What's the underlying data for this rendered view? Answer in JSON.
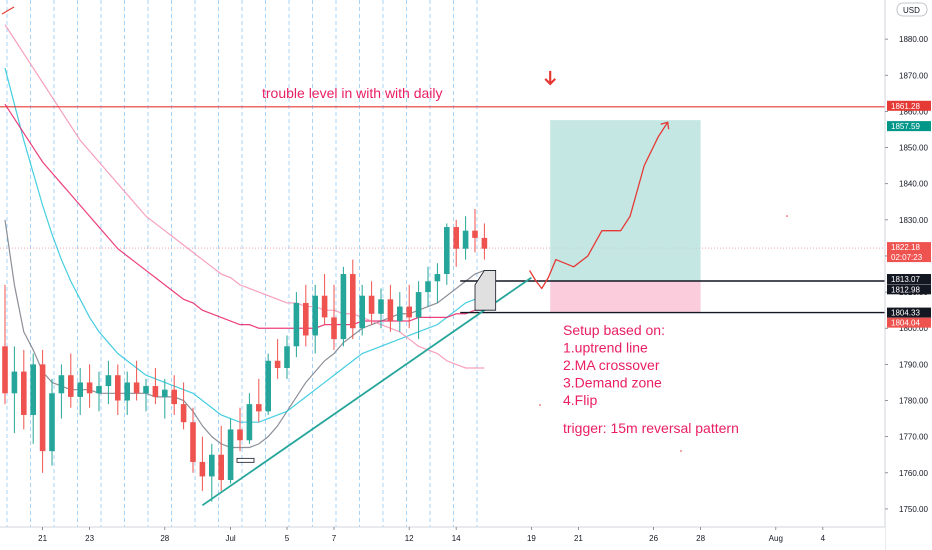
{
  "currency": "USD",
  "chart_data": {
    "type": "candlestick",
    "title": "",
    "xlabel": "",
    "ylabel": "",
    "ylim": [
      1745,
      1890
    ],
    "x_ticks": [
      "21",
      "23",
      "28",
      "Jul",
      "5",
      "7",
      "12",
      "14",
      "19",
      "21",
      "26",
      "28",
      "Aug",
      "4"
    ],
    "x_tick_slots": [
      4,
      9,
      17,
      24,
      30,
      35,
      43,
      48,
      56,
      61,
      69,
      74,
      82,
      87
    ],
    "y_ticks": [
      1750,
      1760,
      1770,
      1780,
      1790,
      1800,
      1810,
      1820,
      1830,
      1840,
      1850,
      1860,
      1870,
      1880
    ],
    "slots_total": 95,
    "candles": [
      {
        "o": 1795,
        "h": 1812,
        "l": 1779,
        "c": 1782
      },
      {
        "o": 1782,
        "h": 1795,
        "l": 1771,
        "c": 1788
      },
      {
        "o": 1788,
        "h": 1794,
        "l": 1772,
        "c": 1776
      },
      {
        "o": 1776,
        "h": 1793,
        "l": 1768,
        "c": 1790
      },
      {
        "o": 1790,
        "h": 1794,
        "l": 1760,
        "c": 1766
      },
      {
        "o": 1766,
        "h": 1786,
        "l": 1762,
        "c": 1782
      },
      {
        "o": 1782,
        "h": 1790,
        "l": 1775,
        "c": 1787
      },
      {
        "o": 1787,
        "h": 1793,
        "l": 1778,
        "c": 1781
      },
      {
        "o": 1781,
        "h": 1789,
        "l": 1776,
        "c": 1785
      },
      {
        "o": 1785,
        "h": 1790,
        "l": 1778,
        "c": 1782
      },
      {
        "o": 1782,
        "h": 1788,
        "l": 1777,
        "c": 1784
      },
      {
        "o": 1784,
        "h": 1791,
        "l": 1779,
        "c": 1787
      },
      {
        "o": 1787,
        "h": 1790,
        "l": 1776,
        "c": 1780
      },
      {
        "o": 1780,
        "h": 1788,
        "l": 1776,
        "c": 1785
      },
      {
        "o": 1785,
        "h": 1791,
        "l": 1780,
        "c": 1782
      },
      {
        "o": 1782,
        "h": 1786,
        "l": 1777,
        "c": 1784
      },
      {
        "o": 1784,
        "h": 1789,
        "l": 1779,
        "c": 1781
      },
      {
        "o": 1781,
        "h": 1786,
        "l": 1775,
        "c": 1783
      },
      {
        "o": 1783,
        "h": 1787,
        "l": 1776,
        "c": 1779
      },
      {
        "o": 1779,
        "h": 1785,
        "l": 1772,
        "c": 1774
      },
      {
        "o": 1774,
        "h": 1778,
        "l": 1760,
        "c": 1763
      },
      {
        "o": 1763,
        "h": 1770,
        "l": 1755,
        "c": 1759
      },
      {
        "o": 1759,
        "h": 1768,
        "l": 1752,
        "c": 1765
      },
      {
        "o": 1765,
        "h": 1773,
        "l": 1755,
        "c": 1758
      },
      {
        "o": 1758,
        "h": 1775,
        "l": 1757,
        "c": 1772
      },
      {
        "o": 1772,
        "h": 1778,
        "l": 1766,
        "c": 1769
      },
      {
        "o": 1769,
        "h": 1782,
        "l": 1768,
        "c": 1779
      },
      {
        "o": 1779,
        "h": 1786,
        "l": 1774,
        "c": 1777
      },
      {
        "o": 1777,
        "h": 1793,
        "l": 1776,
        "c": 1791
      },
      {
        "o": 1791,
        "h": 1797,
        "l": 1786,
        "c": 1789
      },
      {
        "o": 1789,
        "h": 1798,
        "l": 1786,
        "c": 1795
      },
      {
        "o": 1795,
        "h": 1810,
        "l": 1792,
        "c": 1807
      },
      {
        "o": 1807,
        "h": 1812,
        "l": 1795,
        "c": 1798
      },
      {
        "o": 1798,
        "h": 1812,
        "l": 1793,
        "c": 1809
      },
      {
        "o": 1809,
        "h": 1815,
        "l": 1801,
        "c": 1803
      },
      {
        "o": 1803,
        "h": 1812,
        "l": 1794,
        "c": 1797
      },
      {
        "o": 1797,
        "h": 1817,
        "l": 1795,
        "c": 1815
      },
      {
        "o": 1815,
        "h": 1819,
        "l": 1797,
        "c": 1800
      },
      {
        "o": 1800,
        "h": 1812,
        "l": 1798,
        "c": 1809
      },
      {
        "o": 1809,
        "h": 1813,
        "l": 1801,
        "c": 1804
      },
      {
        "o": 1804,
        "h": 1811,
        "l": 1800,
        "c": 1808
      },
      {
        "o": 1808,
        "h": 1812,
        "l": 1799,
        "c": 1802
      },
      {
        "o": 1802,
        "h": 1810,
        "l": 1799,
        "c": 1806
      },
      {
        "o": 1806,
        "h": 1812,
        "l": 1800,
        "c": 1803
      },
      {
        "o": 1803,
        "h": 1813,
        "l": 1797,
        "c": 1810
      },
      {
        "o": 1810,
        "h": 1817,
        "l": 1806,
        "c": 1813
      },
      {
        "o": 1813,
        "h": 1818,
        "l": 1807,
        "c": 1815
      },
      {
        "o": 1815,
        "h": 1829,
        "l": 1812,
        "c": 1828
      },
      {
        "o": 1828,
        "h": 1830,
        "l": 1817,
        "c": 1822
      },
      {
        "o": 1822,
        "h": 1831,
        "l": 1819,
        "c": 1827
      },
      {
        "o": 1827,
        "h": 1833,
        "l": 1821,
        "c": 1825
      },
      {
        "o": 1825,
        "h": 1829,
        "l": 1819,
        "c": 1822
      }
    ],
    "moving_averages": [
      {
        "color": "#787b86",
        "values": [
          1830,
          1812,
          1799,
          1794,
          1788,
          1785,
          1784,
          1783,
          1783,
          1783,
          1782,
          1782,
          1782,
          1782,
          1782,
          1782,
          1781,
          1781,
          1781,
          1780,
          1777,
          1773,
          1770,
          1768,
          1767,
          1767,
          1767,
          1768,
          1770,
          1773,
          1777,
          1781,
          1785,
          1788,
          1791,
          1793,
          1796,
          1798,
          1800,
          1801,
          1802,
          1803,
          1804,
          1804,
          1805,
          1806,
          1807,
          1809,
          1811,
          1813,
          1815,
          1816
        ]
      },
      {
        "color": "#26c6da",
        "values": [
          1872,
          1862,
          1852,
          1843,
          1834,
          1826,
          1819,
          1813,
          1808,
          1803,
          1799,
          1796,
          1793,
          1791,
          1789,
          1787,
          1786,
          1785,
          1784,
          1783,
          1782,
          1780,
          1778,
          1776,
          1775,
          1774,
          1774,
          1774,
          1775,
          1776,
          1777,
          1779,
          1781,
          1783,
          1785,
          1787,
          1789,
          1791,
          1793,
          1794,
          1795,
          1796,
          1797,
          1798,
          1799,
          1800,
          1801,
          1803,
          1805,
          1807,
          1808,
          1809
        ]
      },
      {
        "color": "#e91e63",
        "values": [
          1862,
          1858,
          1854,
          1850,
          1846,
          1843,
          1840,
          1837,
          1834,
          1831,
          1828,
          1825,
          1822,
          1820,
          1818,
          1816,
          1814,
          1812,
          1810,
          1808,
          1807,
          1805,
          1804,
          1803,
          1802,
          1801,
          1801,
          1800,
          1800,
          1800,
          1800,
          1800,
          1800,
          1800,
          1801,
          1801,
          1801,
          1801,
          1802,
          1802,
          1802,
          1802,
          1802,
          1802,
          1803,
          1803,
          1803,
          1803,
          1804,
          1804,
          1805,
          1805
        ]
      },
      {
        "color": "#f48fb1",
        "values": [
          1884,
          1880,
          1876,
          1872,
          1868,
          1864,
          1860,
          1856,
          1852,
          1849,
          1846,
          1843,
          1840,
          1837,
          1834,
          1831,
          1829,
          1827,
          1825,
          1823,
          1821,
          1819,
          1817,
          1815,
          1814,
          1812,
          1811,
          1810,
          1809,
          1808,
          1807,
          1807,
          1806,
          1806,
          1805,
          1805,
          1804,
          1804,
          1803,
          1802,
          1801,
          1800,
          1799,
          1797,
          1795,
          1794,
          1793,
          1791,
          1790,
          1789,
          1789,
          1789
        ]
      }
    ],
    "horizontal_levels": [
      {
        "price": 1861.28,
        "color": "#e53935"
      },
      {
        "price": 1813.07,
        "color": "#131722"
      },
      {
        "price": 1804.33,
        "color": "#131722"
      }
    ],
    "trendline": {
      "from": {
        "slot": 21,
        "price": 1751
      },
      "to": {
        "slot": 56,
        "price": 1814
      },
      "color": "#26a69a"
    },
    "position": {
      "start_slot": 58,
      "end_slot": 74,
      "entry": 1813.07,
      "target": 1857.59,
      "stop": 1804.33
    },
    "price_tags": [
      {
        "label": "1861.28",
        "price": 1861.28,
        "bg": "#e53935"
      },
      {
        "label": "1857.59",
        "price": 1857.59,
        "bg": "#009688"
      },
      {
        "label": "1822.18",
        "label2": "02:07:23",
        "price": 1822.18,
        "bg": "#ef5350"
      },
      {
        "label": "1813.07",
        "price": 1813.07,
        "bg": "#131722"
      },
      {
        "label": "1812.98",
        "price": 1812.98,
        "bg": "#131722"
      },
      {
        "label": "1804.33",
        "price": 1804.33,
        "bg": "#131722"
      },
      {
        "label": "1804.04",
        "price": 1804.04,
        "bg": "#ef5350"
      }
    ],
    "annotations": {
      "trouble": "trouble level in with with daily",
      "setup_lines": [
        "Setup based on:",
        "1.uptrend line",
        "2.MA crossover",
        "3.Demand zone",
        "4.Flip"
      ],
      "trigger": "trigger: 15m reversal pattern"
    }
  }
}
